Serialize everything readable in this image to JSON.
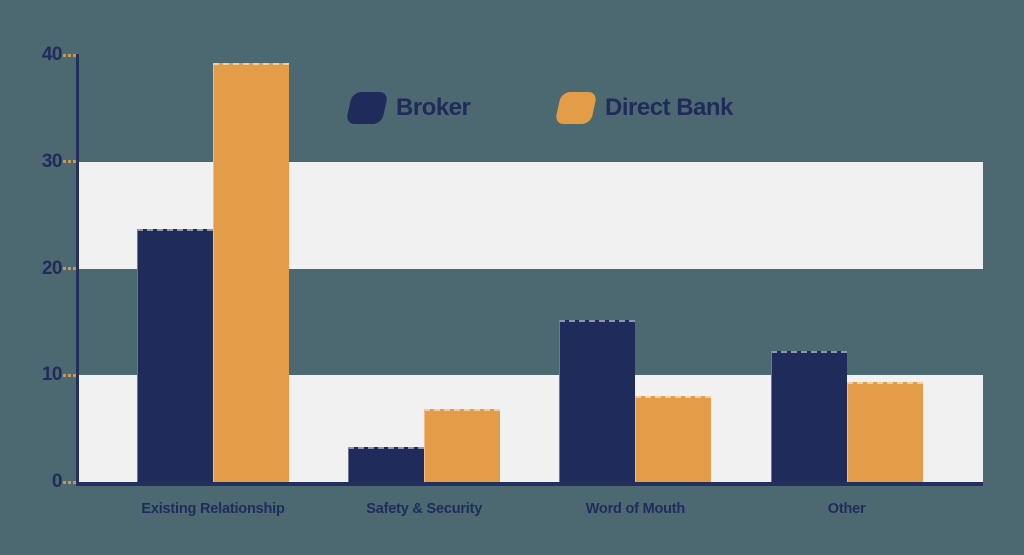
{
  "chart_data": {
    "type": "bar",
    "title": "",
    "xlabel": "",
    "ylabel": "",
    "categories": [
      "Existing Relationship",
      "Safety & Security",
      "Word of Mouth",
      "Other"
    ],
    "series": [
      {
        "name": "Broker",
        "color": "#1F2C5B",
        "values": [
          23.7,
          3.3,
          15.2,
          12.3
        ]
      },
      {
        "name": "Direct Bank",
        "color": "#E39C47",
        "values": [
          39.3,
          6.8,
          8.1,
          9.4
        ]
      }
    ],
    "ylim": [
      0,
      40
    ],
    "yticks": [
      0,
      10,
      20,
      30,
      40
    ],
    "ytick_labels": [
      "0",
      "10",
      "20",
      "30",
      "40"
    ],
    "legend_position": "top-center",
    "grid": "alternating-horizontal-bands"
  },
  "colors": {
    "background": "#4C6971",
    "band": "#F2F1F2",
    "axis": "#232F5D",
    "tick_dash": "#CE9455",
    "text": "#1F2C5B",
    "series_broker": "#1F2C5B",
    "series_direct_bank": "#E39C47"
  }
}
